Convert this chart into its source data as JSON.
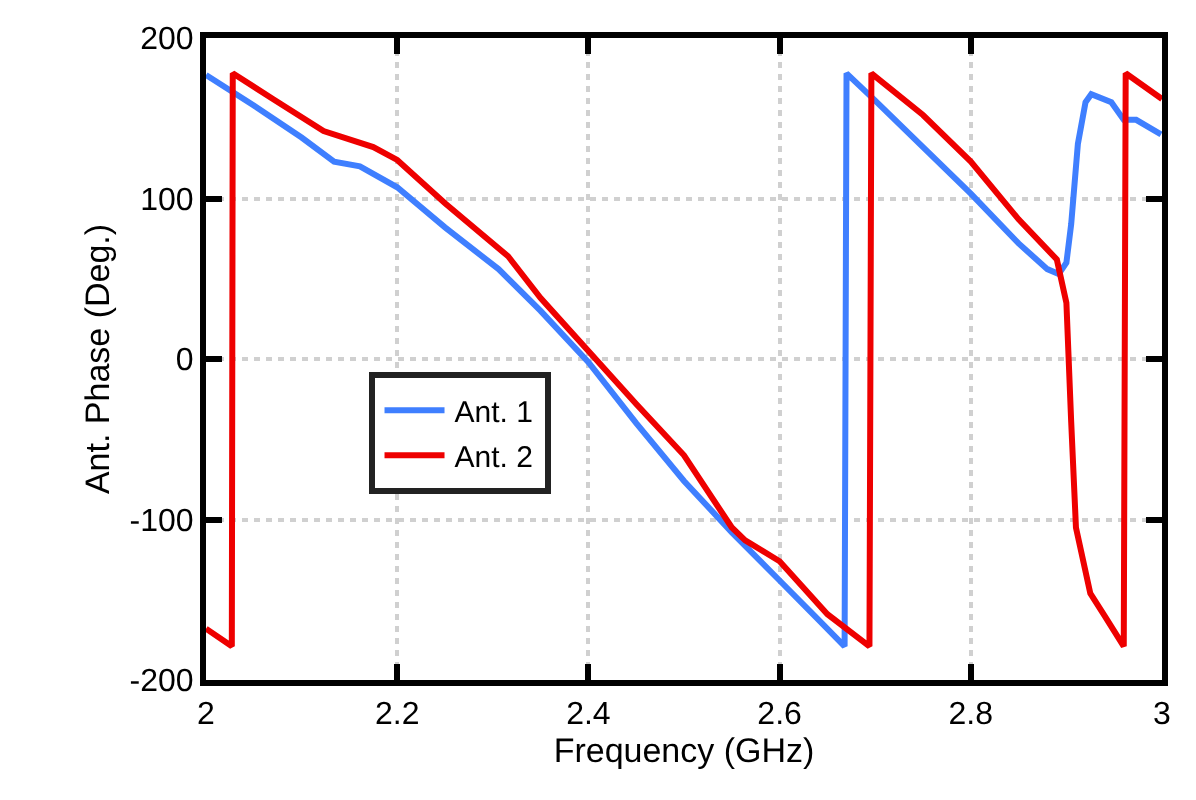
{
  "chart_data": {
    "type": "line",
    "xlabel": "Frequency (GHz)",
    "ylabel": "Ant. Phase (Deg.)",
    "xlim": [
      2,
      3
    ],
    "xticks": [
      2,
      2.2,
      2.4,
      2.6,
      2.8,
      3
    ],
    "ylim": [
      -200,
      200
    ],
    "yticks": [
      -200,
      -100,
      0,
      100,
      200
    ],
    "grid": true,
    "legend": "center left",
    "marker": "none",
    "line_style": "solid",
    "series": [
      {
        "name": "Ant. 1",
        "color": "#3f7fff",
        "x": [
          2.0,
          2.05,
          2.1,
          2.134,
          2.161,
          2.2,
          2.25,
          2.306,
          2.35,
          2.4,
          2.45,
          2.5,
          2.55,
          2.6,
          2.64,
          2.668,
          2.67,
          2.7,
          2.75,
          2.8,
          2.85,
          2.88,
          2.892,
          2.9,
          2.905,
          2.912,
          2.92,
          2.926,
          2.947,
          2.96,
          2.973,
          2.999
        ],
        "values": [
          177,
          158,
          138,
          123,
          120,
          107,
          82,
          56,
          30,
          -2,
          -40,
          -76,
          -108,
          -138,
          -162,
          -179,
          178,
          161,
          132,
          103,
          72,
          56,
          53,
          60,
          84,
          134,
          160,
          165,
          160,
          149,
          149,
          140
        ]
      },
      {
        "name": "Ant. 2",
        "color": "#ee0000",
        "x": [
          2.0,
          2.027,
          2.028,
          2.07,
          2.123,
          2.175,
          2.2,
          2.25,
          2.316,
          2.35,
          2.4,
          2.45,
          2.5,
          2.55,
          2.564,
          2.6,
          2.65,
          2.694,
          2.696,
          2.75,
          2.8,
          2.85,
          2.89,
          2.9,
          2.905,
          2.91,
          2.925,
          2.94,
          2.96,
          2.962,
          3.0
        ],
        "values": [
          -168,
          -179,
          178,
          162,
          142,
          132,
          124,
          97,
          64,
          38,
          5,
          -28,
          -60,
          -105,
          -113,
          -126,
          -159,
          -179,
          178,
          152,
          123,
          87,
          62,
          35,
          -39,
          -105,
          -146,
          -160,
          -179,
          178,
          162
        ]
      }
    ]
  }
}
